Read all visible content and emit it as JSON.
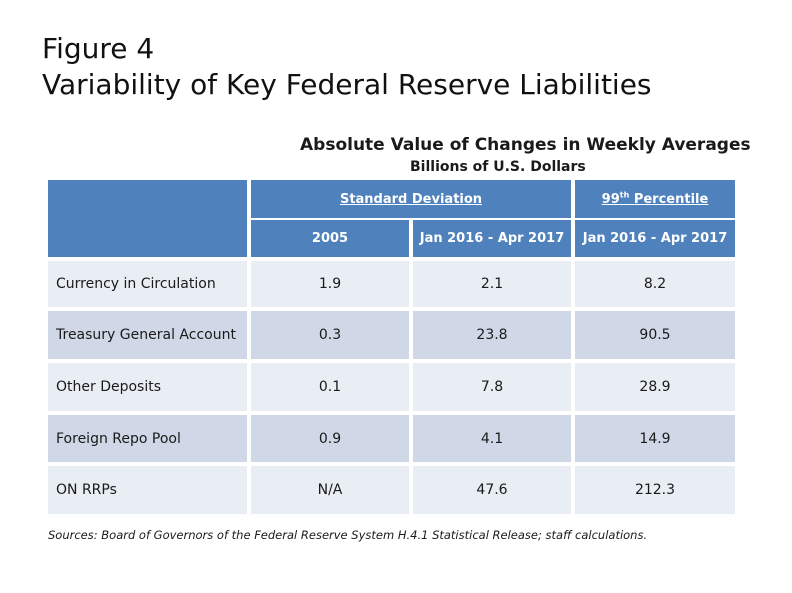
{
  "figure": {
    "label": "Figure 4",
    "title": "Variability of Key Federal Reserve Liabilities"
  },
  "table": {
    "title": "Absolute Value of Changes in Weekly Averages",
    "subtitle": "Billions of U.S. Dollars",
    "group_headers": {
      "std_dev": "Standard Deviation",
      "percentile_num": "99",
      "percentile_sup": "th",
      "percentile_rest": " Percentile"
    },
    "columns": [
      "2005",
      "Jan 2016 - Apr 2017",
      "Jan 2016 - Apr 2017"
    ],
    "rows": [
      {
        "label": "Currency in Circulation",
        "values": [
          "1.9",
          "2.1",
          "8.2"
        ]
      },
      {
        "label": "Treasury General Account",
        "values": [
          "0.3",
          "23.8",
          "90.5"
        ]
      },
      {
        "label": "Other Deposits",
        "values": [
          "0.1",
          "7.8",
          "28.9"
        ]
      },
      {
        "label": "Foreign Repo Pool",
        "values": [
          "0.9",
          "4.1",
          "14.9"
        ]
      },
      {
        "label": "ON RRPs",
        "values": [
          "N/A",
          "47.6",
          "212.3"
        ]
      }
    ]
  },
  "sources": "Sources:  Board of Governors of the Federal Reserve System H.4.1 Statistical Release; staff calculations.",
  "colors": {
    "header_bg": "#4f81bd",
    "row_light": "#e9edf4",
    "row_dark": "#d0d8e8"
  }
}
